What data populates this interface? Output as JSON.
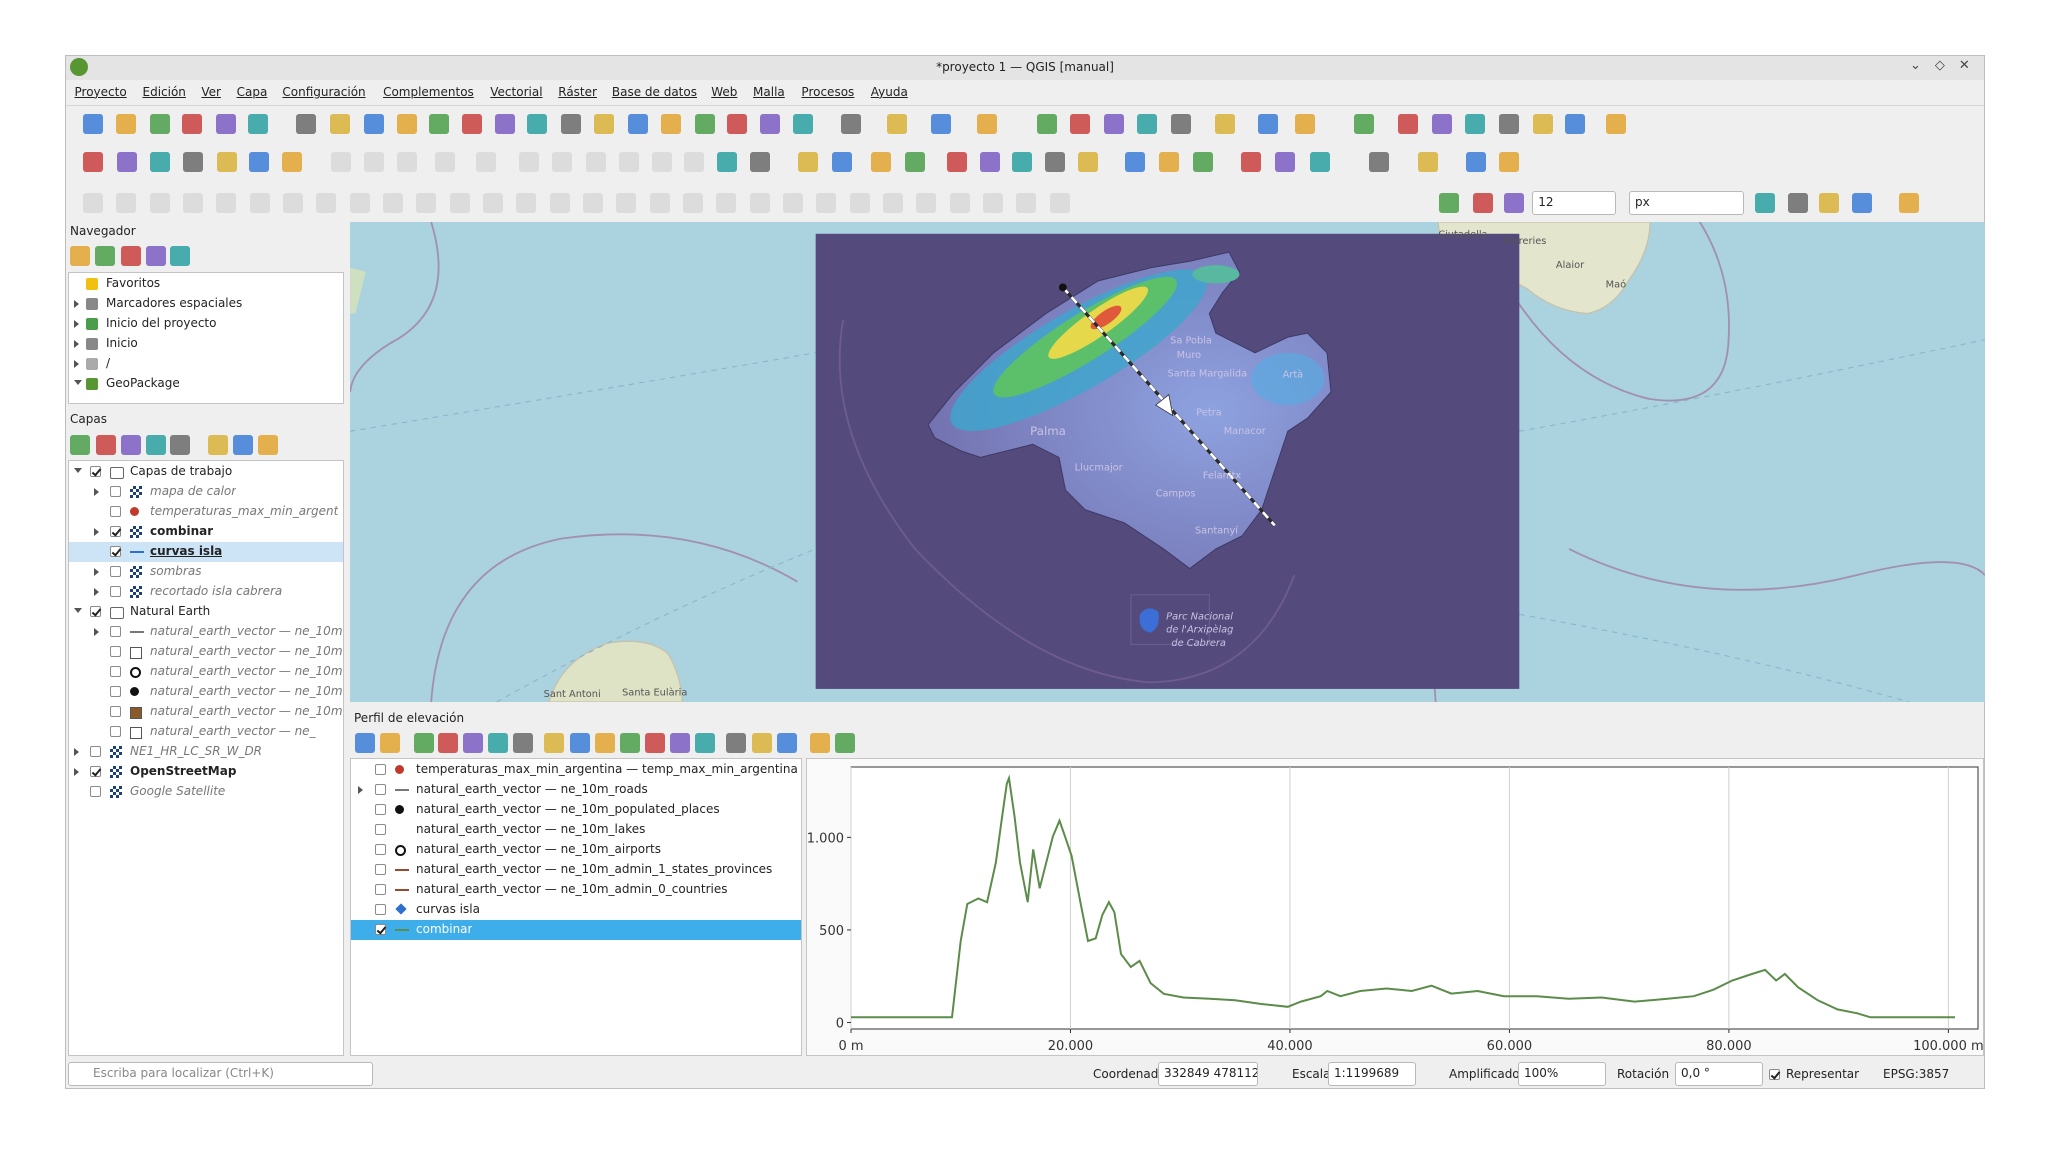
{
  "window": {
    "title": "*proyecto 1 — QGIS [manual]"
  },
  "menu": [
    "Proyecto",
    "Edición",
    "Ver",
    "Capa",
    "Configuración",
    "Complementos",
    "Vectorial",
    "Ráster",
    "Base de datos",
    "Web",
    "Malla",
    "Procesos",
    "Ayuda"
  ],
  "toolbar": {
    "size_value": "12",
    "unit": "px"
  },
  "navigator": {
    "title": "Navegador",
    "items": [
      {
        "label": "Favoritos",
        "icon": "star",
        "expandable": false
      },
      {
        "label": "Marcadores espaciales",
        "icon": "bookmark",
        "expandable": true
      },
      {
        "label": "Inicio del proyecto",
        "icon": "project",
        "expandable": true
      },
      {
        "label": "Inicio",
        "icon": "home",
        "expandable": true
      },
      {
        "label": "/",
        "icon": "folder",
        "expandable": true
      },
      {
        "label": "GeoPackage",
        "icon": "geopackage",
        "expandable": true,
        "expanded": true
      }
    ]
  },
  "layers": {
    "title": "Capas",
    "items": [
      {
        "label": "Capas de trabajo",
        "level": 0,
        "group": true,
        "checked": true,
        "expanded": true
      },
      {
        "label": "mapa de calor",
        "level": 1,
        "checked": false,
        "symbol": "raster",
        "expandable": true
      },
      {
        "label": "temperaturas_max_min_argent",
        "level": 1,
        "checked": false,
        "symbol": "dot",
        "color": "#c0392b"
      },
      {
        "label": "combinar",
        "level": 1,
        "checked": true,
        "symbol": "raster",
        "expandable": true
      },
      {
        "label": "curvas isla",
        "level": 1,
        "checked": true,
        "symbol": "line",
        "color": "#2f6fd0",
        "selected": true
      },
      {
        "label": "sombras",
        "level": 1,
        "checked": false,
        "symbol": "raster",
        "expandable": true
      },
      {
        "label": "recortado isla cabrera",
        "level": 1,
        "checked": false,
        "symbol": "raster",
        "expandable": true
      },
      {
        "label": "Natural Earth",
        "level": 0,
        "group": true,
        "checked": true,
        "expanded": true
      },
      {
        "label": "natural_earth_vector — ne_10m",
        "level": 1,
        "checked": false,
        "symbol": "line",
        "color": "#777",
        "expandable": true
      },
      {
        "label": "natural_earth_vector — ne_10m",
        "level": 1,
        "checked": false,
        "symbol": "square",
        "color": "#ffffff"
      },
      {
        "label": "natural_earth_vector — ne_10m",
        "level": 1,
        "checked": false,
        "symbol": "ring",
        "color": "#111"
      },
      {
        "label": "natural_earth_vector — ne_10m",
        "level": 1,
        "checked": false,
        "symbol": "dot",
        "color": "#111"
      },
      {
        "label": "natural_earth_vector — ne_10m",
        "level": 1,
        "checked": false,
        "symbol": "square",
        "color": "#8b5a2b"
      },
      {
        "label": "natural_earth_vector — ne_",
        "level": 1,
        "checked": false,
        "symbol": "square",
        "color": "#ffffff"
      },
      {
        "label": "NE1_HR_LC_SR_W_DR",
        "level": 0,
        "checked": false,
        "symbol": "raster",
        "expandable": true
      },
      {
        "label": "OpenStreetMap",
        "level": 0,
        "checked": true,
        "symbol": "raster",
        "expandable": true
      },
      {
        "label": "Google Satellite",
        "level": 0,
        "checked": false,
        "symbol": "raster"
      }
    ]
  },
  "map": {
    "labels": [
      "Palma",
      "Llucmajor",
      "Campos",
      "Felanitx",
      "Santanyí",
      "Manacor",
      "Petra",
      "Santa Margalida",
      "Muro",
      "Sa Pobla",
      "Artà",
      "Ciutadella",
      "Ferreries",
      "Alaior",
      "Maó",
      "Sant Antoni",
      "Santa Eulària",
      "Parc Nacional",
      "de l'Arxipèlag",
      "de Cabrera"
    ]
  },
  "elevation_profile": {
    "title": "Perfil de elevación",
    "layers": [
      {
        "label": "temperaturas_max_min_argentina — temp_max_min_argentina",
        "checked": false,
        "symbol": "dot",
        "color": "#c0392b"
      },
      {
        "label": "natural_earth_vector — ne_10m_roads",
        "checked": false,
        "symbol": "line",
        "color": "#777",
        "expandable": true
      },
      {
        "label": "natural_earth_vector — ne_10m_populated_places",
        "checked": false,
        "symbol": "dot",
        "color": "#111"
      },
      {
        "label": "natural_earth_vector — ne_10m_lakes",
        "checked": false,
        "symbol": null
      },
      {
        "label": "natural_earth_vector — ne_10m_airports",
        "checked": false,
        "symbol": "ring",
        "color": "#111"
      },
      {
        "label": "natural_earth_vector — ne_10m_admin_1_states_provinces",
        "checked": false,
        "symbol": "line",
        "color": "#9a4b2d"
      },
      {
        "label": "natural_earth_vector — ne_10m_admin_0_countries",
        "checked": false,
        "symbol": "line",
        "color": "#9a4b2d"
      },
      {
        "label": "curvas isla",
        "checked": false,
        "symbol": "diamond",
        "color": "#2f6fd0"
      },
      {
        "label": "combinar",
        "checked": true,
        "symbol": "line",
        "color": "#5b8c4a",
        "selected": true
      }
    ],
    "chart": {
      "type": "line",
      "color": "#5b8c4a",
      "x": [
        0,
        9200,
        10000,
        10600,
        11600,
        12400,
        13200,
        13700,
        14200,
        14400,
        14900,
        15400,
        16100,
        16600,
        17200,
        17800,
        18400,
        19000,
        19500,
        20100,
        20900,
        21600,
        22300,
        22900,
        23500,
        24000,
        24600,
        25500,
        26300,
        27300,
        28500,
        30300,
        32700,
        35000,
        37400,
        39800,
        41000,
        42800,
        43400,
        44600,
        46400,
        48800,
        51100,
        52900,
        54700,
        57100,
        59500,
        62500,
        65400,
        68400,
        71400,
        74400,
        76800,
        78600,
        80300,
        82100,
        83300,
        84300,
        85100,
        86300,
        88100,
        89900,
        91700,
        92900,
        95200,
        100600
      ],
      "values": [
        28,
        28,
        440,
        640,
        670,
        650,
        865,
        1080,
        1290,
        1320,
        1115,
        865,
        650,
        935,
        725,
        865,
        1005,
        1090,
        1005,
        900,
        650,
        440,
        455,
        580,
        650,
        595,
        370,
        300,
        333,
        213,
        155,
        135,
        128,
        120,
        100,
        85,
        113,
        142,
        170,
        142,
        170,
        184,
        170,
        199,
        156,
        170,
        142,
        142,
        128,
        135,
        113,
        128,
        142,
        177,
        227,
        262,
        284,
        227,
        262,
        191,
        120,
        71,
        50,
        28,
        28,
        28
      ],
      "xlim": [
        0,
        102700
      ],
      "ylim": [
        -35,
        1380
      ],
      "xticks": [
        {
          "value": 0,
          "label": "0 m"
        },
        {
          "value": 20000,
          "label": "20.000"
        },
        {
          "value": 40000,
          "label": "40.000"
        },
        {
          "value": 60000,
          "label": "60.000"
        },
        {
          "value": 80000,
          "label": "80.000"
        },
        {
          "value": 100000,
          "label": "100.000 m"
        }
      ],
      "yticks": [
        0,
        500,
        {
          "value": 1000,
          "label": "1.000"
        }
      ],
      "xgrid": true,
      "ygrid": false
    }
  },
  "status_bar": {
    "search_placeholder": "Escriba para localizar (Ctrl+K)",
    "coordinate_label": "Coordenada",
    "coordinate": "332849 4781127",
    "scale_label": "Escala",
    "scale": "1:1199689",
    "magnifier_label": "Amplificador",
    "magnifier": "100%",
    "rotation_label": "Rotación",
    "rotation": "0,0 °",
    "render_checked": true,
    "render_label": "Representar",
    "crs": "EPSG:3857"
  }
}
